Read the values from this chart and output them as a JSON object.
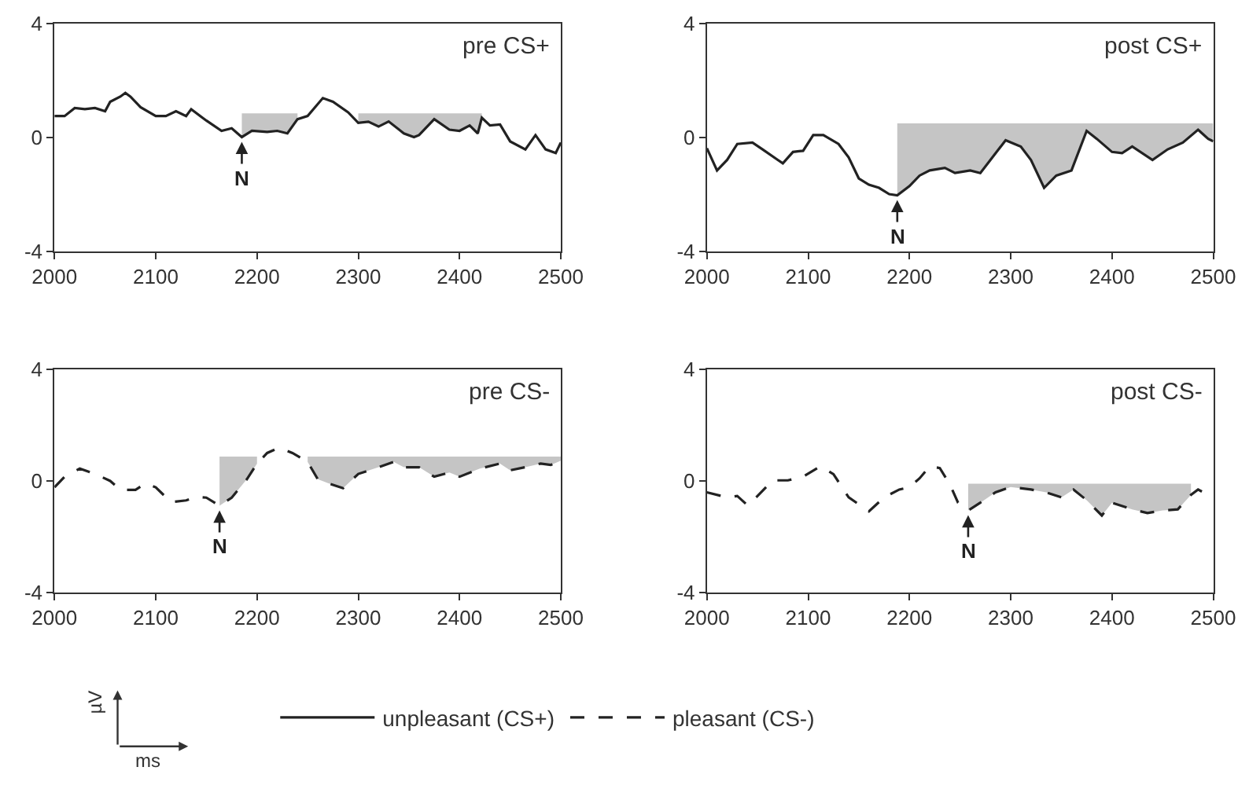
{
  "chart_data": [
    {
      "type": "line",
      "title": "pre CS+",
      "line_style": "solid",
      "legend": "bottom",
      "xlim": [
        2000,
        2500
      ],
      "xticks": [
        2000,
        2100,
        2200,
        2300,
        2400,
        2500
      ],
      "ylim": [
        -4,
        4
      ],
      "yticks": [
        -4,
        0,
        4
      ],
      "x": [
        2000,
        2010,
        2020,
        2030,
        2040,
        2050,
        2055,
        2065,
        2070,
        2075,
        2085,
        2100,
        2110,
        2120,
        2130,
        2135,
        2150,
        2165,
        2175,
        2185,
        2195,
        2210,
        2220,
        2230,
        2240,
        2250,
        2265,
        2275,
        2290,
        2300,
        2310,
        2320,
        2330,
        2345,
        2355,
        2360,
        2375,
        2390,
        2400,
        2410,
        2418,
        2422,
        2430,
        2440,
        2450,
        2465,
        2475,
        2485,
        2495,
        2500
      ],
      "series": [
        {
          "name": "unpleasant (CS+)",
          "color": "#222222",
          "values": [
            0.76,
            0.76,
            1.04,
            1.0,
            1.04,
            0.93,
            1.26,
            1.44,
            1.57,
            1.44,
            1.07,
            0.76,
            0.76,
            0.93,
            0.76,
            1.0,
            0.6,
            0.24,
            0.33,
            0.02,
            0.24,
            0.2,
            0.24,
            0.15,
            0.65,
            0.76,
            1.39,
            1.26,
            0.89,
            0.52,
            0.56,
            0.39,
            0.57,
            0.15,
            0.02,
            0.09,
            0.65,
            0.28,
            0.24,
            0.43,
            0.15,
            0.7,
            0.43,
            0.46,
            -0.13,
            -0.41,
            0.09,
            -0.41,
            -0.54,
            -0.17
          ],
          "upper": [
            null,
            null,
            null,
            null,
            null,
            null,
            null,
            null,
            null,
            null,
            null,
            null,
            null,
            null,
            null,
            null,
            null,
            null,
            null,
            0.85,
            0.85,
            0.85,
            0.85,
            0.85,
            0.85,
            null,
            null,
            null,
            null,
            0.85,
            0.85,
            0.85,
            0.85,
            0.85,
            0.85,
            0.85,
            0.85,
            0.85,
            0.85,
            0.85,
            0.85,
            0.85,
            null,
            null,
            null,
            null,
            null,
            null,
            null,
            null
          ],
          "lower": [
            null,
            null,
            null,
            null,
            null,
            null,
            null,
            null,
            null,
            null,
            null,
            null,
            null,
            null,
            null,
            null,
            null,
            null,
            null,
            0.02,
            0.24,
            0.2,
            0.24,
            0.15,
            0.65,
            null,
            null,
            null,
            null,
            0.52,
            0.56,
            0.39,
            0.57,
            0.15,
            0.02,
            0.09,
            0.65,
            0.28,
            0.24,
            0.43,
            0.15,
            0.7,
            null,
            null,
            null,
            null,
            null,
            null,
            null,
            null
          ]
        }
      ],
      "annotations": [
        {
          "text": "N",
          "x": 2185,
          "y": 0.02
        }
      ]
    },
    {
      "type": "line",
      "title": "post CS+",
      "line_style": "solid",
      "xlim": [
        2000,
        2500
      ],
      "xticks": [
        2000,
        2100,
        2200,
        2300,
        2400,
        2500
      ],
      "ylim": [
        -4,
        4
      ],
      "yticks": [
        -4,
        0,
        4
      ],
      "x": [
        2000,
        2010,
        2020,
        2030,
        2045,
        2055,
        2070,
        2075,
        2085,
        2095,
        2105,
        2115,
        2130,
        2140,
        2150,
        2160,
        2170,
        2180,
        2188,
        2200,
        2210,
        2220,
        2235,
        2245,
        2260,
        2270,
        2280,
        2295,
        2310,
        2320,
        2333,
        2345,
        2360,
        2375,
        2385,
        2400,
        2410,
        2420,
        2440,
        2455,
        2470,
        2485,
        2495,
        2500
      ],
      "series": [
        {
          "color": "#222222",
          "values": [
            -0.37,
            -1.15,
            -0.78,
            -0.22,
            -0.17,
            -0.41,
            -0.78,
            -0.9,
            -0.5,
            -0.46,
            0.09,
            0.09,
            -0.22,
            -0.69,
            -1.43,
            -1.65,
            -1.76,
            -1.98,
            -2.02,
            -1.7,
            -1.33,
            -1.15,
            -1.06,
            -1.24,
            -1.15,
            -1.24,
            -0.78,
            -0.09,
            -0.31,
            -0.78,
            -1.76,
            -1.33,
            -1.15,
            0.24,
            -0.04,
            -0.5,
            -0.54,
            -0.31,
            -0.78,
            -0.41,
            -0.17,
            0.28,
            -0.04,
            -0.13
          ],
          "upper": [
            null,
            null,
            null,
            null,
            null,
            null,
            null,
            null,
            null,
            null,
            null,
            null,
            null,
            null,
            null,
            null,
            null,
            null,
            0.5,
            0.5,
            0.5,
            0.5,
            0.5,
            0.5,
            0.5,
            0.5,
            0.5,
            0.5,
            0.5,
            0.5,
            0.5,
            0.5,
            0.5,
            0.5,
            0.5,
            0.5,
            0.5,
            0.5,
            0.5,
            0.5,
            0.5,
            0.5,
            0.5,
            0.5
          ],
          "lower": [
            null,
            null,
            null,
            null,
            null,
            null,
            null,
            null,
            null,
            null,
            null,
            null,
            null,
            null,
            null,
            null,
            null,
            null,
            -2.02,
            -1.7,
            -1.33,
            -1.15,
            -1.06,
            -1.24,
            -1.15,
            -1.24,
            -0.78,
            -0.09,
            -0.31,
            -0.78,
            -1.76,
            -1.33,
            -1.15,
            0.24,
            -0.04,
            -0.5,
            -0.54,
            -0.31,
            -0.78,
            -0.41,
            -0.17,
            0.28,
            -0.04,
            -0.13
          ]
        }
      ],
      "annotations": [
        {
          "text": "N",
          "x": 2188,
          "y": -2.02
        }
      ]
    },
    {
      "type": "line",
      "title": "pre CS-",
      "line_style": "dashed",
      "legend": "bottom",
      "xlabel": "ms",
      "ylabel": "µV",
      "xlim": [
        2000,
        2500
      ],
      "xticks": [
        2000,
        2100,
        2200,
        2300,
        2400,
        2500
      ],
      "ylim": [
        -4,
        4
      ],
      "yticks": [
        -4,
        0,
        4
      ],
      "x": [
        2000,
        2010,
        2025,
        2040,
        2055,
        2065,
        2080,
        2090,
        2100,
        2115,
        2130,
        2140,
        2150,
        2163,
        2175,
        2190,
        2200,
        2210,
        2222,
        2235,
        2250,
        2260,
        2270,
        2285,
        2300,
        2320,
        2335,
        2345,
        2360,
        2375,
        2390,
        2400,
        2420,
        2440,
        2450,
        2465,
        2480,
        2490,
        2500
      ],
      "series": [
        {
          "name": "pleasant (CS-)",
          "color": "#222222",
          "values": [
            -0.23,
            0.15,
            0.44,
            0.25,
            0,
            -0.32,
            -0.32,
            -0.09,
            -0.23,
            -0.76,
            -0.7,
            -0.57,
            -0.6,
            -0.89,
            -0.6,
            0.06,
            0.62,
            1.0,
            1.19,
            1.0,
            0.68,
            0.06,
            -0.08,
            -0.26,
            0.25,
            0.49,
            0.68,
            0.49,
            0.49,
            0.15,
            0.3,
            0.15,
            0.44,
            0.62,
            0.38,
            0.49,
            0.62,
            0.57,
            0.72
          ],
          "upper": [
            null,
            null,
            null,
            null,
            null,
            null,
            null,
            null,
            null,
            null,
            null,
            null,
            null,
            0.87,
            0.87,
            0.87,
            0.87,
            null,
            null,
            null,
            0.87,
            0.87,
            0.87,
            0.87,
            0.87,
            0.87,
            0.87,
            0.87,
            0.87,
            0.87,
            0.87,
            0.87,
            0.87,
            0.87,
            0.87,
            0.87,
            0.87,
            0.87,
            0.87
          ],
          "lower": [
            null,
            null,
            null,
            null,
            null,
            null,
            null,
            null,
            null,
            null,
            null,
            null,
            null,
            -0.89,
            -0.6,
            0.06,
            0.62,
            null,
            null,
            null,
            0.68,
            0.06,
            -0.08,
            -0.26,
            0.25,
            0.49,
            0.68,
            0.49,
            0.49,
            0.15,
            0.3,
            0.15,
            0.44,
            0.62,
            0.38,
            0.49,
            0.62,
            0.57,
            0.72
          ]
        }
      ],
      "annotations": [
        {
          "text": "N",
          "x": 2163,
          "y": -0.89
        }
      ]
    },
    {
      "type": "line",
      "title": "post CS-",
      "line_style": "dashed",
      "xlim": [
        2000,
        2500
      ],
      "xticks": [
        2000,
        2100,
        2200,
        2300,
        2400,
        2500
      ],
      "ylim": [
        -4,
        4
      ],
      "yticks": [
        -4,
        0,
        4
      ],
      "x": [
        2000,
        2020,
        2030,
        2040,
        2050,
        2065,
        2080,
        2095,
        2112,
        2125,
        2140,
        2160,
        2175,
        2190,
        2200,
        2210,
        2220,
        2230,
        2240,
        2248,
        2258,
        2270,
        2285,
        2300,
        2320,
        2335,
        2350,
        2362,
        2375,
        2390,
        2400,
        2420,
        2435,
        2450,
        2465,
        2478,
        2485,
        2495,
        2500
      ],
      "series": [
        {
          "color": "#222222",
          "values": [
            -0.41,
            -0.59,
            -0.54,
            -0.87,
            -0.54,
            0.02,
            0.02,
            0.15,
            0.52,
            0.24,
            -0.59,
            -1.09,
            -0.59,
            -0.31,
            -0.22,
            0.09,
            0.52,
            0.46,
            -0.13,
            -0.78,
            -1.06,
            -0.78,
            -0.41,
            -0.22,
            -0.31,
            -0.41,
            -0.59,
            -0.31,
            -0.69,
            -1.24,
            -0.78,
            -1.02,
            -1.15,
            -1.06,
            -1.02,
            -0.5,
            -0.31,
            -0.5,
            -0.5
          ],
          "upper": [
            null,
            null,
            null,
            null,
            null,
            null,
            null,
            null,
            null,
            null,
            null,
            null,
            null,
            null,
            null,
            null,
            null,
            null,
            null,
            null,
            -0.1,
            -0.1,
            -0.1,
            -0.1,
            -0.1,
            -0.1,
            -0.1,
            -0.1,
            -0.1,
            -0.1,
            -0.1,
            -0.1,
            -0.1,
            -0.1,
            -0.1,
            -0.1,
            null,
            null,
            null
          ],
          "lower": [
            null,
            null,
            null,
            null,
            null,
            null,
            null,
            null,
            null,
            null,
            null,
            null,
            null,
            null,
            null,
            null,
            null,
            null,
            null,
            null,
            -1.06,
            -0.78,
            -0.41,
            -0.22,
            -0.31,
            -0.41,
            -0.59,
            -0.31,
            -0.69,
            -1.24,
            -0.78,
            -1.02,
            -1.15,
            -1.06,
            -1.02,
            -0.5,
            null,
            null,
            null
          ]
        }
      ],
      "annotations": [
        {
          "text": "N",
          "x": 2258,
          "y": -1.06
        }
      ]
    }
  ]
}
